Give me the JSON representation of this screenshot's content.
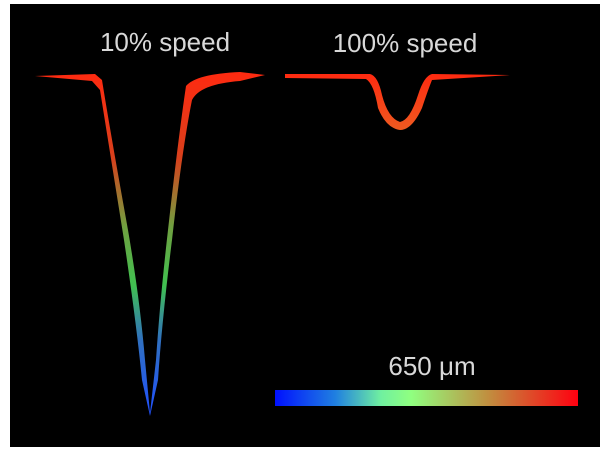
{
  "labels": {
    "left": "10% speed",
    "right": "100% speed"
  },
  "scale_bar": {
    "label": "650 μm"
  }
}
